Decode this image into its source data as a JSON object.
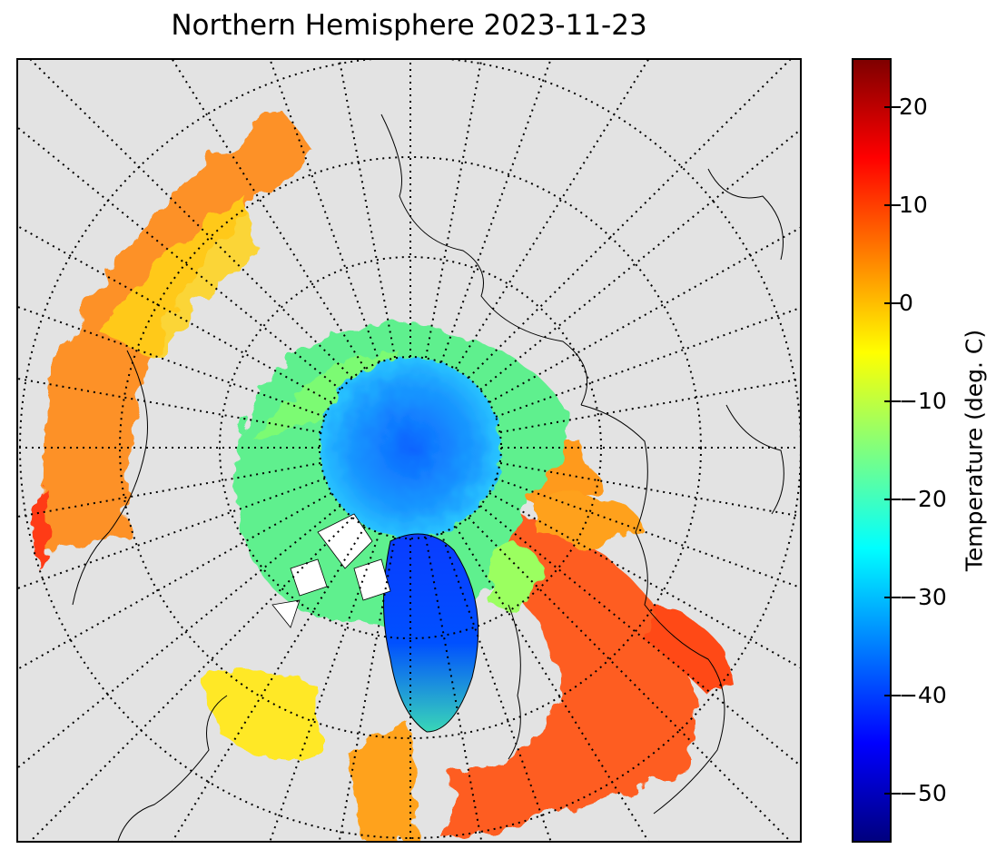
{
  "title": "Northern Hemisphere 2023-11-23",
  "colorbar": {
    "label": "Temperature (deg. C)",
    "colormap": "jet",
    "range": [
      -55,
      25
    ],
    "ticks": [
      {
        "value": 20,
        "label": "20"
      },
      {
        "value": 10,
        "label": "10"
      },
      {
        "value": 0,
        "label": "0"
      },
      {
        "value": -10,
        "label": "−10"
      },
      {
        "value": -20,
        "label": "−20"
      },
      {
        "value": -30,
        "label": "−30"
      },
      {
        "value": -40,
        "label": "−40"
      },
      {
        "value": -50,
        "label": "−50"
      }
    ]
  },
  "map": {
    "projection": "north-polar-stereographic",
    "background_color": "#e3e3e3",
    "graticule": "dotted",
    "regions": [
      {
        "name": "central-arctic-ice",
        "temperature_c": -33
      },
      {
        "name": "greenland-interior",
        "temperature_c": -45
      },
      {
        "name": "arctic-ice-margin",
        "temperature_c": -17
      },
      {
        "name": "northern-europe",
        "temperature_c": 12
      },
      {
        "name": "north-pacific",
        "temperature_c": 6
      },
      {
        "name": "canada-north",
        "temperature_c": -4
      }
    ]
  }
}
